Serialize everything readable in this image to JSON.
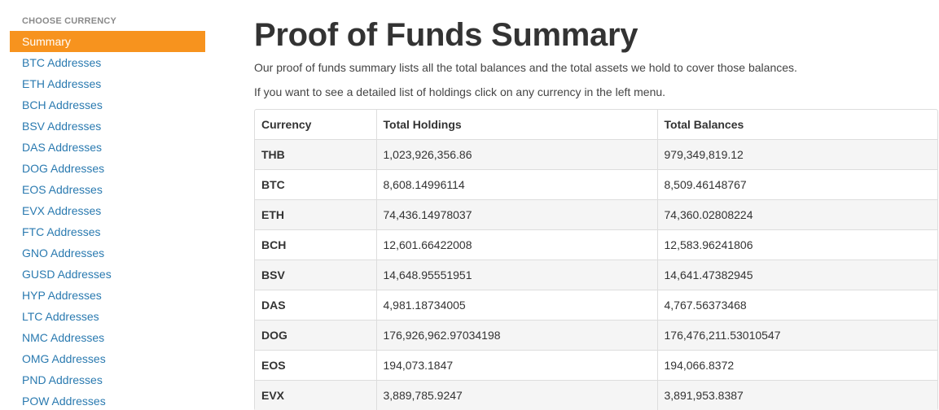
{
  "sidebar": {
    "heading": "CHOOSE CURRENCY",
    "items": [
      {
        "label": "Summary",
        "active": true
      },
      {
        "label": "BTC Addresses"
      },
      {
        "label": "ETH Addresses"
      },
      {
        "label": "BCH Addresses"
      },
      {
        "label": "BSV Addresses"
      },
      {
        "label": "DAS Addresses"
      },
      {
        "label": "DOG Addresses"
      },
      {
        "label": "EOS Addresses"
      },
      {
        "label": "EVX Addresses"
      },
      {
        "label": "FTC Addresses"
      },
      {
        "label": "GNO Addresses"
      },
      {
        "label": "GUSD Addresses"
      },
      {
        "label": "HYP Addresses"
      },
      {
        "label": "LTC Addresses"
      },
      {
        "label": "NMC Addresses"
      },
      {
        "label": "OMG Addresses"
      },
      {
        "label": "PND Addresses"
      },
      {
        "label": "POW Addresses"
      }
    ]
  },
  "main": {
    "title": "Proof of Funds Summary",
    "intro1": "Our proof of funds summary lists all the total balances and the total assets we hold to cover those balances.",
    "intro2": "If you want to see a detailed list of holdings click on any currency in the left menu."
  },
  "table": {
    "headers": [
      "Currency",
      "Total Holdings",
      "Total Balances"
    ],
    "rows": [
      [
        "THB",
        "1,023,926,356.86",
        "979,349,819.12"
      ],
      [
        "BTC",
        "8,608.14996114",
        "8,509.46148767"
      ],
      [
        "ETH",
        "74,436.14978037",
        "74,360.02808224"
      ],
      [
        "BCH",
        "12,601.66422008",
        "12,583.96241806"
      ],
      [
        "BSV",
        "14,648.95551951",
        "14,641.47382945"
      ],
      [
        "DAS",
        "4,981.18734005",
        "4,767.56373468"
      ],
      [
        "DOG",
        "176,926,962.97034198",
        "176,476,211.53010547"
      ],
      [
        "EOS",
        "194,073.1847",
        "194,066.8372"
      ],
      [
        "EVX",
        "3,889,785.9247",
        "3,891,953.8387"
      ]
    ]
  },
  "colors": {
    "accent": "#f7931e",
    "link": "#2a7ab0"
  }
}
